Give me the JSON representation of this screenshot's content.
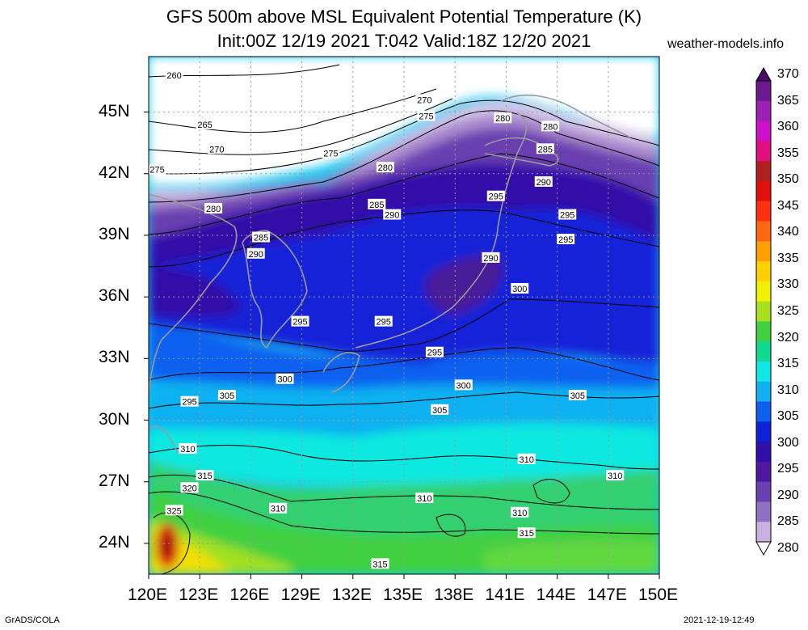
{
  "title": {
    "line1": "GFS 500m above MSL Equivalent Potential Temperature (K)",
    "line2": "Init:00Z 12/19 2021 T:042 Valid:18Z 12/20 2021",
    "site": "weather-models.info"
  },
  "lat_labels": [
    "45N",
    "42N",
    "39N",
    "36N",
    "33N",
    "30N",
    "27N",
    "24N"
  ],
  "lat_values": [
    45,
    42,
    39,
    36,
    33,
    30,
    27,
    24
  ],
  "lon_labels": [
    "120E",
    "123E",
    "126E",
    "129E",
    "132E",
    "135E",
    "138E",
    "141E",
    "144E",
    "147E",
    "150E"
  ],
  "lon_values": [
    120,
    123,
    126,
    129,
    132,
    135,
    138,
    141,
    144,
    147,
    150
  ],
  "colorbar": {
    "labels": [
      "370",
      "365",
      "360",
      "355",
      "350",
      "345",
      "340",
      "335",
      "330",
      "325",
      "320",
      "315",
      "310",
      "305",
      "300",
      "295",
      "290",
      "285",
      "280"
    ],
    "colors": [
      "#6a1a8c",
      "#9c20b4",
      "#cc10c8",
      "#e01080",
      "#b02020",
      "#e01010",
      "#ff3010",
      "#ff6810",
      "#ffa000",
      "#ffd000",
      "#f0f000",
      "#a8e020",
      "#40d040",
      "#10d890",
      "#10e8e8",
      "#10b0f0",
      "#1060f0",
      "#1020d8",
      "#3010a8",
      "#5018a0",
      "#6a40b0",
      "#9070c0",
      "#c8b0e0"
    ]
  },
  "contours": [
    {
      "label": "260",
      "lon": 121.5,
      "lat": 46.8
    },
    {
      "label": "265",
      "lon": 123.3,
      "lat": 44.4
    },
    {
      "label": "270",
      "lon": 124.0,
      "lat": 43.2
    },
    {
      "label": "275",
      "lon": 120.5,
      "lat": 42.2
    },
    {
      "label": "270",
      "lon": 136.2,
      "lat": 45.6
    },
    {
      "label": "275",
      "lon": 136.3,
      "lat": 44.8
    },
    {
      "label": "275",
      "lon": 130.7,
      "lat": 43.0
    },
    {
      "label": "280",
      "lon": 133.9,
      "lat": 42.3
    },
    {
      "label": "280",
      "lon": 140.8,
      "lat": 44.7
    },
    {
      "label": "280",
      "lon": 143.6,
      "lat": 44.3
    },
    {
      "label": "285",
      "lon": 143.3,
      "lat": 43.2
    },
    {
      "label": "290",
      "lon": 143.2,
      "lat": 41.6
    },
    {
      "label": "295",
      "lon": 140.4,
      "lat": 40.9
    },
    {
      "label": "285",
      "lon": 133.4,
      "lat": 40.5
    },
    {
      "label": "290",
      "lon": 134.3,
      "lat": 40.0
    },
    {
      "label": "295",
      "lon": 144.6,
      "lat": 40.0
    },
    {
      "label": "295",
      "lon": 144.5,
      "lat": 38.8
    },
    {
      "label": "280",
      "lon": 123.8,
      "lat": 40.3
    },
    {
      "label": "285",
      "lon": 126.6,
      "lat": 38.9
    },
    {
      "label": "290",
      "lon": 126.3,
      "lat": 38.1
    },
    {
      "label": "290",
      "lon": 140.1,
      "lat": 37.9
    },
    {
      "label": "300",
      "lon": 141.8,
      "lat": 36.4
    },
    {
      "label": "295",
      "lon": 128.9,
      "lat": 34.8
    },
    {
      "label": "295",
      "lon": 133.8,
      "lat": 34.8
    },
    {
      "label": "295",
      "lon": 136.8,
      "lat": 33.3
    },
    {
      "label": "300",
      "lon": 128.0,
      "lat": 32.0
    },
    {
      "label": "300",
      "lon": 138.5,
      "lat": 31.7
    },
    {
      "label": "295",
      "lon": 122.4,
      "lat": 30.9
    },
    {
      "label": "305",
      "lon": 124.6,
      "lat": 31.2
    },
    {
      "label": "305",
      "lon": 137.1,
      "lat": 30.5
    },
    {
      "label": "305",
      "lon": 145.2,
      "lat": 31.2
    },
    {
      "label": "310",
      "lon": 122.3,
      "lat": 28.6
    },
    {
      "label": "315",
      "lon": 123.3,
      "lat": 27.3
    },
    {
      "label": "320",
      "lon": 122.4,
      "lat": 26.7
    },
    {
      "label": "310",
      "lon": 142.2,
      "lat": 28.1
    },
    {
      "label": "310",
      "lon": 147.4,
      "lat": 27.3
    },
    {
      "label": "310",
      "lon": 136.2,
      "lat": 26.2
    },
    {
      "label": "310",
      "lon": 127.6,
      "lat": 25.7
    },
    {
      "label": "325",
      "lon": 121.5,
      "lat": 25.6
    },
    {
      "label": "310",
      "lon": 141.8,
      "lat": 25.5
    },
    {
      "label": "315",
      "lon": 142.2,
      "lat": 24.5
    },
    {
      "label": "315",
      "lon": 133.6,
      "lat": 23.0
    }
  ],
  "credit": "GrADS/COLA",
  "timestamp": "2021-12-19-12:49"
}
